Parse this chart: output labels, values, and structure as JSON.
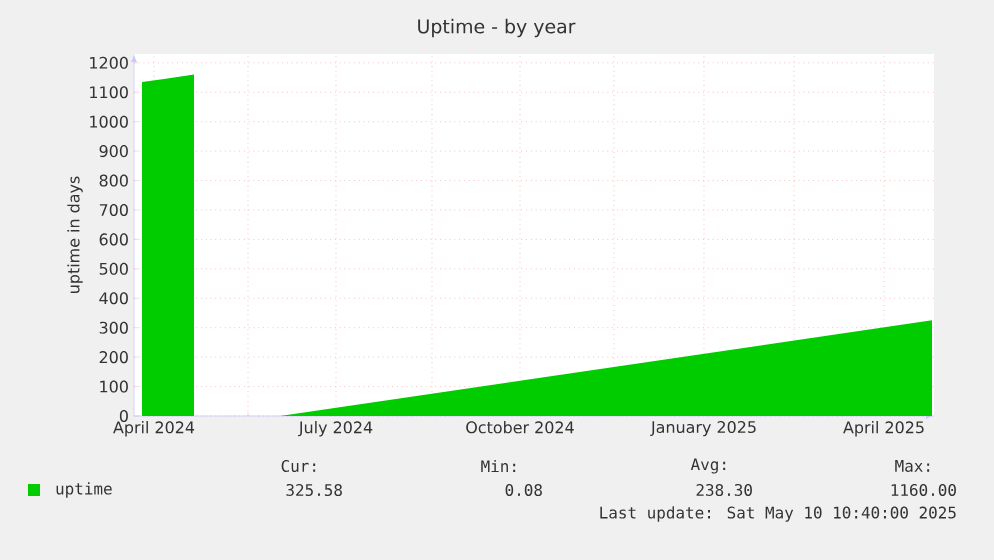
{
  "chart_data": {
    "type": "area",
    "title": "Uptime - by year",
    "ylabel": "uptime in days",
    "x": [
      "2024-04-09",
      "2024-04-20",
      "2024-05-05",
      "2024-05-25",
      "2024-06-17",
      "2025-05-09"
    ],
    "series": [
      {
        "name": "uptime",
        "color": "#00cc00",
        "values": [
          1135,
          1145,
          1160,
          null,
          0,
          325
        ]
      }
    ],
    "xlim": [
      "2024-04-05",
      "2025-05-10"
    ],
    "xticks": [
      {
        "value": "2024-04-15",
        "label": "April 2024"
      },
      {
        "value": "2024-06-01",
        "label": null
      },
      {
        "value": "2024-07-15",
        "label": "July 2024"
      },
      {
        "value": "2024-09-01",
        "label": null
      },
      {
        "value": "2024-10-15",
        "label": "October 2024"
      },
      {
        "value": "2024-12-01",
        "label": null
      },
      {
        "value": "2025-01-15",
        "label": "January 2025"
      },
      {
        "value": "2025-03-01",
        "label": null
      },
      {
        "value": "2025-04-15",
        "label": "April 2025"
      }
    ],
    "ylim": [
      0,
      1230
    ],
    "yticks": [
      0,
      100,
      200,
      300,
      400,
      500,
      600,
      700,
      800,
      900,
      1000,
      1100,
      1200
    ],
    "grid": true,
    "legend": "bottom left",
    "annotations": [
      "Cur:",
      "Min:",
      "Avg:",
      "Max:",
      "325.58",
      "0.08",
      "238.30",
      "1160.00",
      "Last update: Sat May 10 10:40:00 2025"
    ]
  }
}
